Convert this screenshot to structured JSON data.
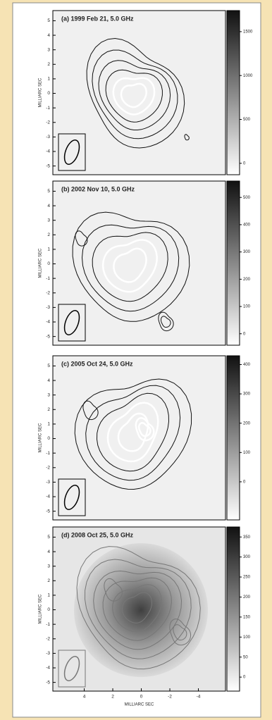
{
  "chart_data": [
    {
      "type": "contour",
      "title": "(a) 1999 Feb 21, 5.0 GHz",
      "ylabel": "MILLIARC SEC",
      "ylim": [
        -5.6,
        5.7
      ],
      "yticks": [
        5,
        4,
        3,
        2,
        1,
        0,
        -1,
        -2,
        -3,
        -4,
        -5
      ],
      "colorbar_lim": [
        -130,
        1740
      ],
      "colorbar_ticks": [
        0,
        500,
        1000,
        1500
      ]
    },
    {
      "type": "contour",
      "title": "(b) 2002 Nov 10, 5.0 GHz",
      "ylabel": "MILLIARC SEC",
      "ylim": [
        -5.6,
        5.7
      ],
      "yticks": [
        5,
        4,
        3,
        2,
        1,
        0,
        -1,
        -2,
        -3,
        -4,
        -5
      ],
      "colorbar_lim": [
        -42,
        560
      ],
      "colorbar_ticks": [
        0,
        100,
        200,
        300,
        400,
        500
      ]
    },
    {
      "type": "contour",
      "title": "(c) 2005 Oct 24, 5.0 GHz",
      "ylabel": "MILLIARC SEC",
      "ylim": [
        -5.6,
        5.7
      ],
      "yticks": [
        5,
        4,
        3,
        2,
        1,
        0,
        -1,
        -2,
        -3,
        -4,
        -5
      ],
      "colorbar_lim": [
        -130,
        430
      ],
      "colorbar_ticks": [
        0,
        100,
        200,
        300,
        400
      ]
    },
    {
      "type": "contour",
      "title": "(d) 2008 Oct 25, 5.0 GHz",
      "ylabel": "MILLIARC SEC",
      "xlabel": "MILLIARC SEC",
      "xlim": [
        6.2,
        -5.9
      ],
      "xticks": [
        4,
        2,
        0,
        -2,
        -4
      ],
      "ylim": [
        -5.6,
        5.7
      ],
      "yticks": [
        5,
        4,
        3,
        2,
        1,
        0,
        -1,
        -2,
        -3,
        -4,
        -5
      ],
      "colorbar_lim": [
        -35,
        375
      ],
      "colorbar_ticks": [
        0,
        50,
        100,
        150,
        200,
        250,
        300,
        350
      ]
    }
  ]
}
